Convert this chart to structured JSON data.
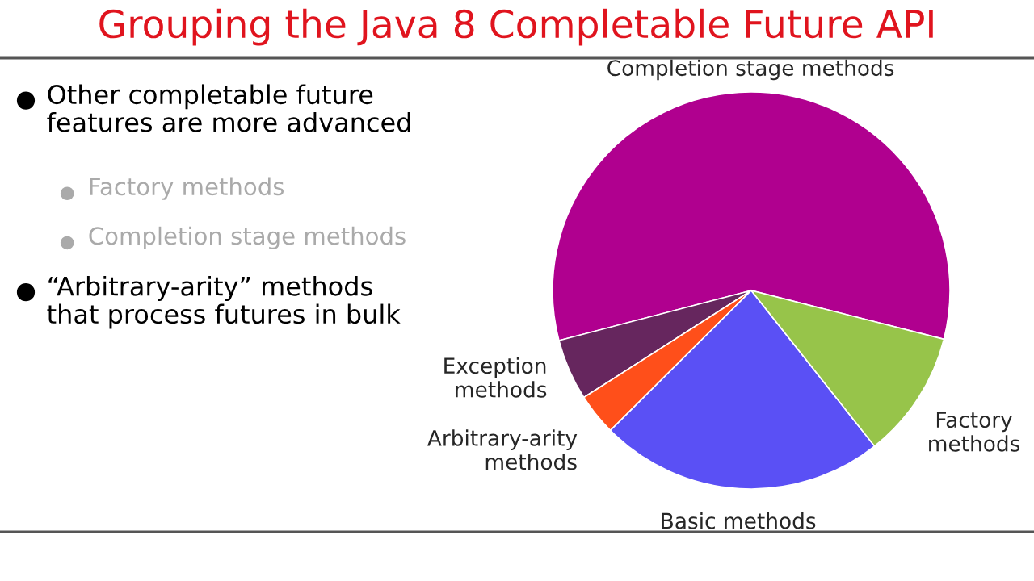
{
  "chart_data": {
    "type": "pie",
    "title": "Grouping the Java 8 Completable Future API",
    "categories": [
      "Completion stage methods",
      "Exception\nmethods",
      "Arbitrary-arity\nmethods",
      "Basic methods",
      "Factory\nmethods"
    ],
    "values": [
      58,
      5,
      3.4,
      23.2,
      10.4
    ],
    "colors": [
      "#b0008f",
      "#66265e",
      "#ff4f1a",
      "#5a50f5",
      "#97c44a"
    ],
    "annotations": [
      "Other completable future\nfeatures are more advanced",
      "Factory methods",
      "Completion stage methods",
      "“Arbitrary-arity” methods\nthat process futures in bulk"
    ]
  }
}
